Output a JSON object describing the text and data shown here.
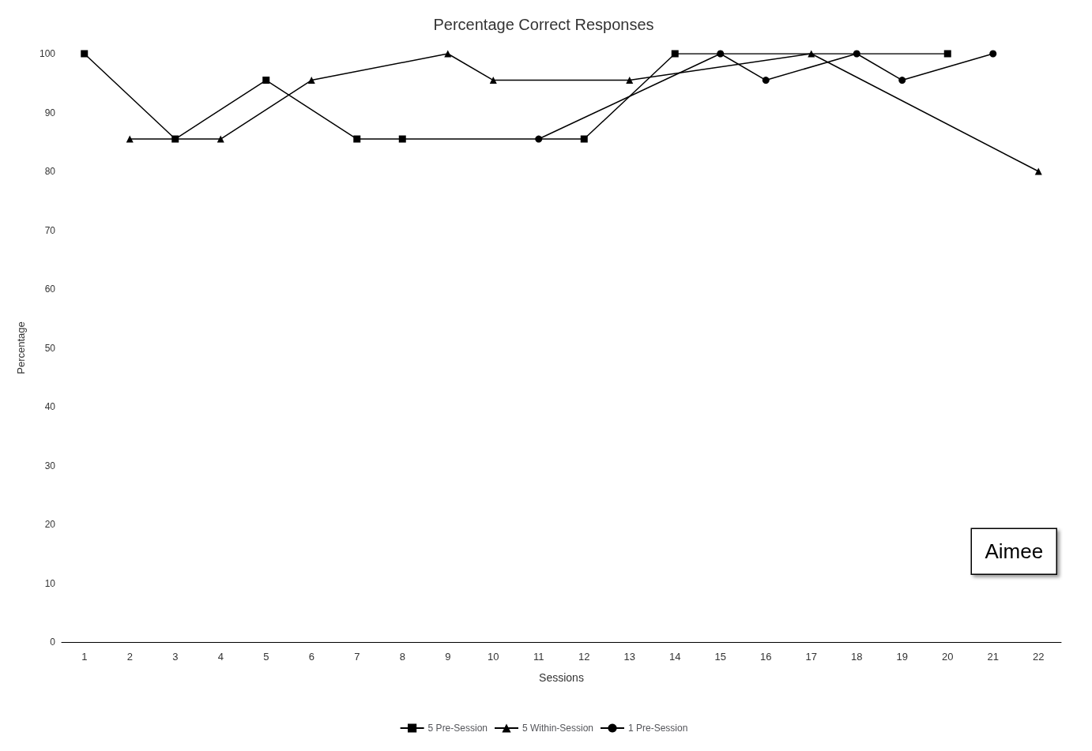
{
  "chart_data": {
    "type": "line",
    "title": "Percentage Correct Responses",
    "xlabel": "Sessions",
    "ylabel": "Percentage",
    "x": [
      1,
      2,
      3,
      4,
      5,
      6,
      7,
      8,
      9,
      10,
      11,
      12,
      13,
      14,
      15,
      16,
      17,
      18,
      19,
      20,
      21,
      22
    ],
    "xlim": [
      0.5,
      22.5
    ],
    "xticks": [
      1,
      2,
      3,
      4,
      5,
      6,
      7,
      8,
      9,
      10,
      11,
      12,
      13,
      14,
      15,
      16,
      17,
      18,
      19,
      20,
      21,
      22
    ],
    "series": [
      {
        "name": "5 Pre-Session",
        "color": "#000000",
        "marker": "square",
        "values": [
          100,
          null,
          85.5,
          null,
          95.5,
          null,
          85.5,
          85.5,
          null,
          null,
          null,
          85.5,
          null,
          100,
          null,
          null,
          null,
          null,
          null,
          100,
          null,
          null
        ]
      },
      {
        "name": "5 Within-Session",
        "color": "#000000",
        "marker": "triangle",
        "values": [
          null,
          85.5,
          null,
          85.5,
          null,
          95.5,
          null,
          null,
          100,
          95.5,
          null,
          null,
          95.5,
          null,
          null,
          null,
          100,
          null,
          null,
          null,
          null,
          80
        ]
      },
      {
        "name": "1 Pre-Session",
        "color": "#000000",
        "marker": "circle",
        "values": [
          null,
          null,
          null,
          null,
          null,
          null,
          null,
          null,
          null,
          null,
          85.5,
          null,
          null,
          null,
          100,
          95.5,
          null,
          100,
          95.5,
          null,
          100,
          null
        ]
      }
    ],
    "ylim": [
      0,
      100
    ],
    "yticks": [
      0,
      10,
      20,
      30,
      40,
      50,
      60,
      70,
      80,
      90,
      100
    ],
    "grid": false,
    "legend": "bottom",
    "line_style": "solid",
    "annotations": [
      "Aimee"
    ]
  }
}
